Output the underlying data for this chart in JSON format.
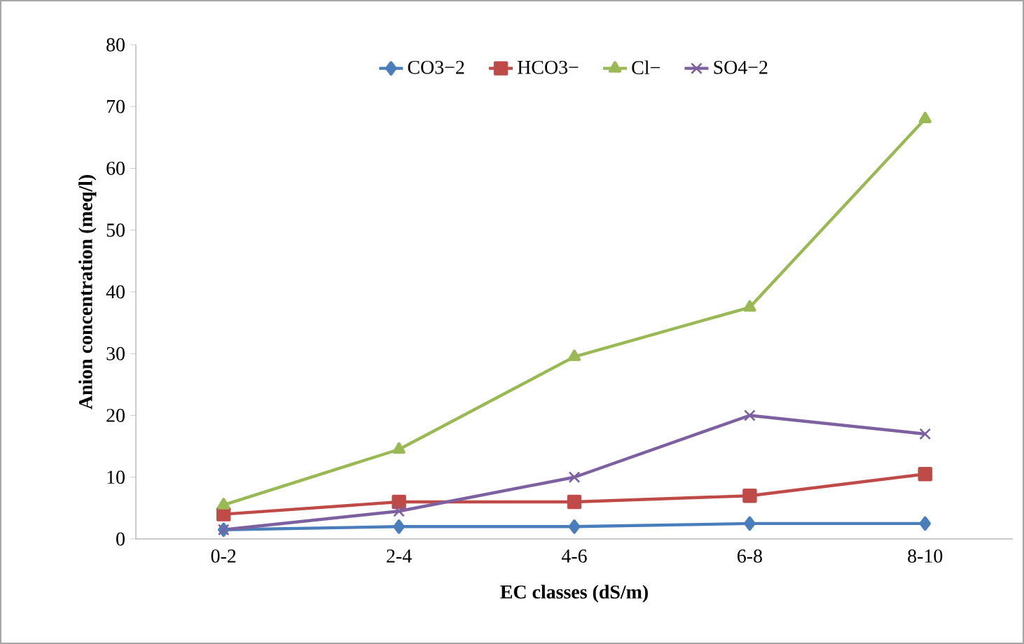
{
  "chart_data": {
    "type": "line",
    "xlabel": "EC classes (dS/m)",
    "ylabel": "Anion concentration (meq/l)",
    "categories": [
      "0-2",
      "2-4",
      "4-6",
      "6-8",
      "8-10"
    ],
    "series": [
      {
        "name": "CO3−2",
        "color": "#4a7ebb",
        "marker": "diamond",
        "values": [
          1.5,
          2,
          2,
          2.5,
          2.5
        ]
      },
      {
        "name": "HCO3−",
        "color": "#be4b48",
        "marker": "square",
        "values": [
          4,
          6,
          6,
          7,
          10.5
        ]
      },
      {
        "name": "Cl−",
        "color": "#98b954",
        "marker": "triangle",
        "values": [
          5.5,
          14.5,
          29.5,
          37.5,
          68
        ]
      },
      {
        "name": "SO4−2",
        "color": "#7d60a0",
        "marker": "cross",
        "values": [
          1.5,
          4.5,
          10,
          20,
          17
        ]
      }
    ],
    "ylim": [
      0,
      80
    ],
    "yticks": [
      0,
      10,
      20,
      30,
      40,
      50,
      60,
      70,
      80
    ],
    "grid": false,
    "legend": "top"
  }
}
